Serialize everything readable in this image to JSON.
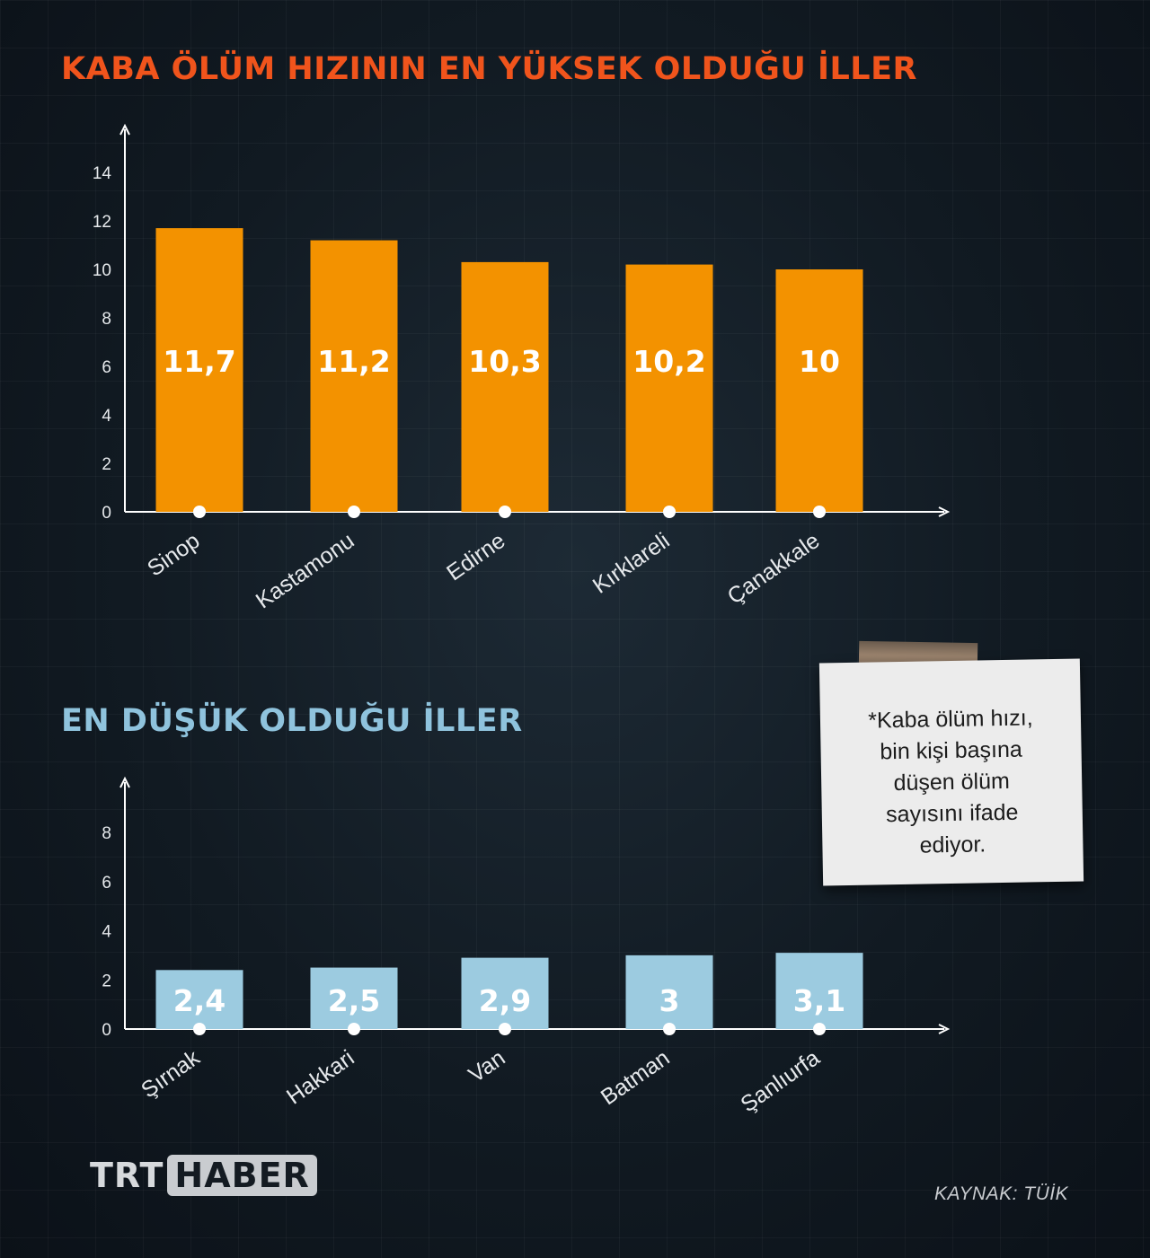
{
  "colors": {
    "high_title": "#f0541c",
    "low_title": "#8fc3dd",
    "high_bar": "#f39200",
    "low_bar": "#9ccbe0",
    "axis": "#ffffff"
  },
  "chart_data": [
    {
      "type": "bar",
      "title": "KABA ÖLÜM HIZININ EN YÜKSEK OLDUĞU İLLER",
      "categories": [
        "Sinop",
        "Kastamonu",
        "Edirne",
        "Kırklareli",
        "Çanakkale"
      ],
      "values": [
        11.7,
        11.2,
        10.3,
        10.2,
        10
      ],
      "value_labels": [
        "11,7",
        "11,2",
        "10,3",
        "10,2",
        "10"
      ],
      "yticks": [
        "0",
        "2",
        "4",
        "6",
        "8",
        "10",
        "12",
        "14"
      ],
      "ylim": [
        0,
        14
      ],
      "grid": false
    },
    {
      "type": "bar",
      "title": "EN DÜŞÜK OLDUĞU İLLER",
      "categories": [
        "Şırnak",
        "Hakkari",
        "Van",
        "Batman",
        "Şanlıurfa"
      ],
      "values": [
        2.4,
        2.5,
        2.9,
        3,
        3.1
      ],
      "value_labels": [
        "2,4",
        "2,5",
        "2,9",
        "3",
        "3,1"
      ],
      "yticks": [
        "0",
        "2",
        "4",
        "6",
        "8"
      ],
      "ylim": [
        0,
        8
      ],
      "grid": false
    }
  ],
  "note": {
    "text": "*Kaba ölüm hızı,\nbin kişi başına\ndüşen ölüm\nsayısını ifade\nediyor."
  },
  "logo": {
    "part1": "TRT",
    "part2": "HABER"
  },
  "source": "KAYNAK: TÜİK"
}
